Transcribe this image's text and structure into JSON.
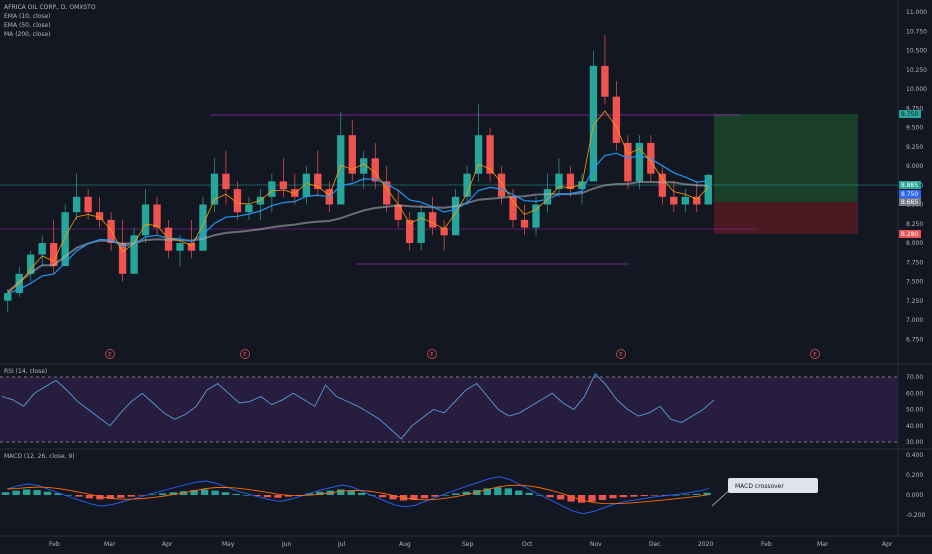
{
  "main_pane": {
    "symbol_title": "AFRICA OIL CORP., D, OMXSTO",
    "indicators": [
      "EMA (10, close)",
      "EMA (50, close)",
      "MA (200, close)"
    ],
    "earnings_marker": "E",
    "price_tags": [
      {
        "value": "9.750",
        "color": "#26a69a",
        "text_color": "#131722"
      },
      {
        "value": "8.885",
        "color": "#26a69a",
        "text_color": "#ffffff"
      },
      {
        "value": "8.750",
        "color": "#2962ff",
        "text_color": "#ffffff"
      },
      {
        "value": "8.665",
        "color": "#787b86",
        "text_color": "#ffffff"
      },
      {
        "value": "8.280",
        "color": "#ef5350",
        "text_color": "#ffffff"
      }
    ]
  },
  "rsi_pane": {
    "title": "RSI (14, close)"
  },
  "macd_pane": {
    "title": "MACD (12, 26, close, 9)",
    "annotation": "MACD crossover"
  },
  "chart_data": [
    {
      "type": "candlestick",
      "title": "AFRICA OIL CORP., D, OMXSTO",
      "x_ticks": [
        "Feb",
        "Mar",
        "Apr",
        "May",
        "Jun",
        "Jul",
        "Aug",
        "Sep",
        "Oct",
        "Nov",
        "Dec",
        "2020",
        "Feb",
        "Mar",
        "Apr"
      ],
      "y_ticks": [
        "11.000",
        "10.750",
        "10.500",
        "10.250",
        "10.000",
        "9.750",
        "9.500",
        "9.250",
        "9.000",
        "8.750",
        "8.500",
        "8.250",
        "8.000",
        "7.750",
        "7.500",
        "7.250",
        "7.000",
        "6.750"
      ],
      "ylim": [
        6.7,
        11.1
      ],
      "ohlc_approx": [
        [
          7.25,
          7.4,
          7.1,
          7.35
        ],
        [
          7.35,
          7.7,
          7.3,
          7.6
        ],
        [
          7.6,
          7.9,
          7.5,
          7.85
        ],
        [
          7.85,
          8.1,
          7.7,
          8.0
        ],
        [
          8.0,
          8.3,
          7.6,
          7.7
        ],
        [
          7.7,
          8.5,
          7.7,
          8.4
        ],
        [
          8.4,
          8.9,
          8.3,
          8.6
        ],
        [
          8.6,
          8.7,
          8.3,
          8.4
        ],
        [
          8.4,
          8.6,
          8.2,
          8.3
        ],
        [
          8.3,
          8.4,
          7.9,
          8.0
        ],
        [
          8.0,
          8.3,
          7.5,
          7.6
        ],
        [
          7.6,
          8.2,
          7.6,
          8.1
        ],
        [
          8.1,
          8.7,
          8.0,
          8.5
        ],
        [
          8.5,
          8.6,
          8.1,
          8.2
        ],
        [
          8.2,
          8.3,
          7.8,
          7.9
        ],
        [
          7.9,
          8.1,
          7.7,
          8.0
        ],
        [
          8.0,
          8.3,
          7.8,
          7.9
        ],
        [
          7.9,
          8.6,
          7.9,
          8.5
        ],
        [
          8.5,
          9.1,
          8.4,
          8.9
        ],
        [
          8.9,
          9.2,
          8.5,
          8.7
        ],
        [
          8.7,
          8.8,
          8.3,
          8.4
        ],
        [
          8.4,
          8.6,
          8.3,
          8.5
        ],
        [
          8.5,
          8.7,
          8.3,
          8.6
        ],
        [
          8.6,
          8.9,
          8.4,
          8.8
        ],
        [
          8.8,
          9.1,
          8.6,
          8.7
        ],
        [
          8.7,
          8.9,
          8.5,
          8.6
        ],
        [
          8.6,
          9.0,
          8.5,
          8.9
        ],
        [
          8.9,
          9.2,
          8.6,
          8.7
        ],
        [
          8.7,
          8.8,
          8.4,
          8.5
        ],
        [
          8.5,
          9.7,
          8.5,
          9.4
        ],
        [
          9.4,
          9.6,
          8.8,
          8.9
        ],
        [
          8.9,
          9.2,
          8.7,
          9.1
        ],
        [
          9.1,
          9.3,
          8.7,
          8.8
        ],
        [
          8.8,
          9.0,
          8.4,
          8.5
        ],
        [
          8.5,
          8.7,
          8.2,
          8.3
        ],
        [
          8.3,
          8.4,
          7.9,
          8.0
        ],
        [
          8.0,
          8.5,
          7.9,
          8.4
        ],
        [
          8.4,
          8.6,
          8.1,
          8.2
        ],
        [
          8.2,
          8.3,
          7.9,
          8.1
        ],
        [
          8.1,
          8.7,
          8.1,
          8.6
        ],
        [
          8.6,
          9.0,
          8.5,
          8.9
        ],
        [
          8.9,
          9.8,
          8.8,
          9.4
        ],
        [
          9.4,
          9.5,
          8.8,
          8.9
        ],
        [
          8.9,
          9.0,
          8.5,
          8.6
        ],
        [
          8.6,
          8.7,
          8.2,
          8.3
        ],
        [
          8.3,
          8.5,
          8.1,
          8.2
        ],
        [
          8.2,
          8.6,
          8.1,
          8.5
        ],
        [
          8.5,
          8.9,
          8.4,
          8.7
        ],
        [
          8.7,
          9.1,
          8.6,
          8.9
        ],
        [
          8.9,
          9.0,
          8.6,
          8.7
        ],
        [
          8.7,
          8.9,
          8.5,
          8.8
        ],
        [
          8.8,
          10.5,
          8.8,
          10.3
        ],
        [
          10.3,
          10.7,
          9.8,
          9.9
        ],
        [
          9.9,
          10.1,
          9.2,
          9.3
        ],
        [
          9.3,
          9.4,
          8.7,
          8.8
        ],
        [
          8.8,
          9.4,
          8.7,
          9.3
        ],
        [
          9.3,
          9.4,
          8.8,
          8.9
        ],
        [
          8.9,
          9.0,
          8.5,
          8.6
        ],
        [
          8.6,
          8.8,
          8.4,
          8.5
        ],
        [
          8.5,
          8.7,
          8.4,
          8.6
        ],
        [
          8.6,
          8.8,
          8.4,
          8.5
        ],
        [
          8.5,
          8.9,
          8.5,
          8.885
        ]
      ],
      "series": [
        {
          "name": "EMA (10, close)"
        },
        {
          "name": "EMA (50, close)"
        },
        {
          "name": "MA (200, close)"
        }
      ],
      "horizontal_levels": [
        9.75,
        8.885,
        8.665,
        8.28,
        7.9
      ],
      "trade_box": {
        "target": 9.75,
        "entry": 8.665,
        "stop": 8.28
      }
    },
    {
      "type": "line",
      "title": "RSI (14, close)",
      "y_ticks": [
        "70.00",
        "60.00",
        "50.00",
        "40.00",
        "30.00"
      ],
      "ylim": [
        28,
        73
      ],
      "bands": [
        30,
        70
      ],
      "values": [
        58,
        56,
        52,
        60,
        64,
        68,
        62,
        55,
        50,
        45,
        40,
        48,
        55,
        60,
        54,
        48,
        44,
        47,
        52,
        62,
        66,
        60,
        54,
        55,
        58,
        53,
        56,
        60,
        56,
        52,
        65,
        58,
        55,
        52,
        48,
        44,
        38,
        32,
        40,
        45,
        50,
        48,
        55,
        62,
        66,
        58,
        50,
        46,
        48,
        52,
        56,
        60,
        54,
        50,
        58,
        72,
        65,
        56,
        50,
        46,
        48,
        52,
        44,
        42,
        46,
        50,
        56
      ]
    },
    {
      "type": "bar",
      "title": "MACD (12, 26, close, 9)",
      "y_ticks": [
        "0.400",
        "0.200",
        "0.000",
        "-0.200"
      ],
      "ylim": [
        -0.28,
        0.42
      ],
      "values": [
        0.05,
        0.08,
        0.1,
        0.09,
        0.06,
        0.03,
        0.0,
        -0.03,
        -0.06,
        -0.08,
        -0.07,
        -0.05,
        -0.03,
        -0.01,
        0.01,
        0.03,
        0.05,
        0.07,
        0.09,
        0.1,
        0.08,
        0.05,
        0.02,
        0.0,
        -0.02,
        -0.04,
        -0.05,
        -0.03,
        0.0,
        0.03,
        0.06,
        0.08,
        0.1,
        0.08,
        0.04,
        0.0,
        -0.04,
        -0.08,
        -0.1,
        -0.09,
        -0.06,
        -0.03,
        0.0,
        0.03,
        0.06,
        0.09,
        0.12,
        0.14,
        0.12,
        0.08,
        0.04,
        0.0,
        -0.04,
        -0.08,
        -0.12,
        -0.14,
        -0.12,
        -0.09,
        -0.06,
        -0.04,
        -0.03,
        -0.02,
        -0.01,
        -0.005,
        0.0,
        0.01,
        0.02,
        0.04
      ]
    }
  ]
}
